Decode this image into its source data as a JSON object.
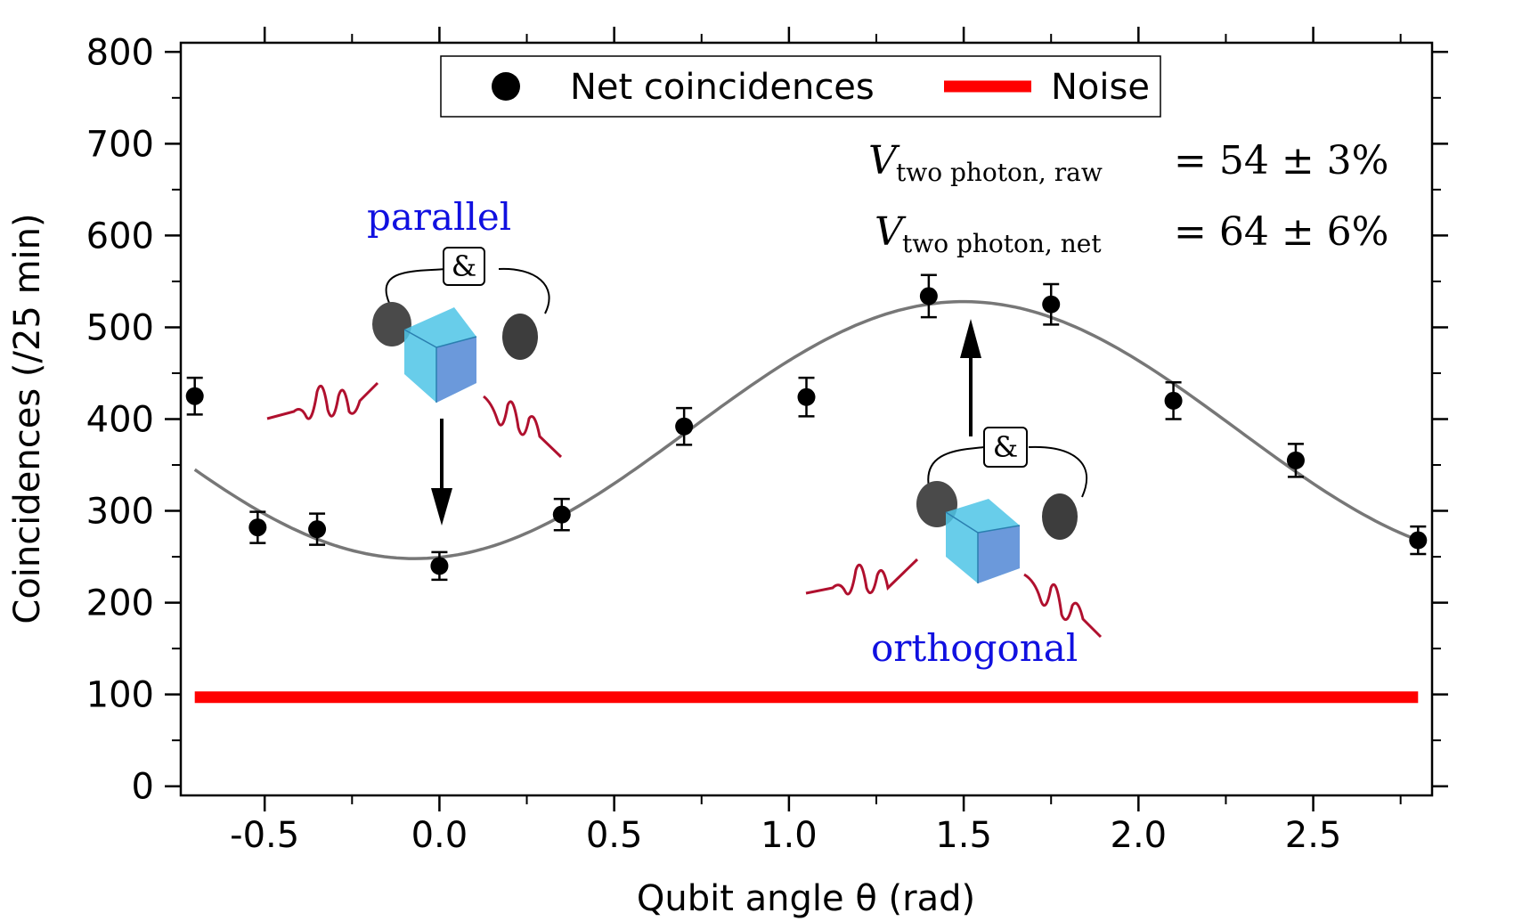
{
  "chart_data": {
    "type": "scatter",
    "xlabel": "Qubit angle θ (rad)",
    "ylabel": "Coincidences (/25 min)",
    "xlim": [
      -0.74,
      2.84
    ],
    "ylim": [
      -10,
      810
    ],
    "xticks": [
      -0.5,
      0.0,
      0.5,
      1.0,
      1.5,
      2.0,
      2.5
    ],
    "xtick_labels": [
      "-0.5",
      "0.0",
      "0.5",
      "1.0",
      "1.5",
      "2.0",
      "2.5"
    ],
    "yticks": [
      0,
      100,
      200,
      300,
      400,
      500,
      600,
      700,
      800
    ],
    "ytick_labels": [
      "0",
      "100",
      "200",
      "300",
      "400",
      "500",
      "600",
      "700",
      "800"
    ],
    "series": [
      {
        "name": "Net coincidences",
        "kind": "points-with-errorbars",
        "color": "#000000",
        "x": [
          -0.7,
          -0.52,
          -0.35,
          0.0,
          0.35,
          0.7,
          1.05,
          1.4,
          1.75,
          2.1,
          2.45,
          2.8
        ],
        "y": [
          425,
          282,
          280,
          240,
          296,
          392,
          424,
          534,
          525,
          420,
          355,
          268
        ],
        "yerr": [
          20,
          17,
          17,
          15,
          17,
          20,
          21,
          23,
          22,
          20,
          18,
          15
        ]
      },
      {
        "name": "Noise",
        "kind": "line",
        "color": "#ff0000",
        "x": [
          -0.7,
          2.8
        ],
        "y": [
          97,
          97
        ]
      },
      {
        "name": "fit",
        "kind": "curve",
        "color": "#777777",
        "model": "offset + amplitude*cos(2*(x - phase))",
        "offset": 388,
        "amplitude": 140,
        "phase": 1.5,
        "x_range": [
          -0.7,
          2.8
        ]
      }
    ],
    "legend": {
      "position": "top-center",
      "entries": [
        "Net coincidences",
        "Noise"
      ]
    },
    "annotations": {
      "raw": {
        "symbol": "V",
        "subscript": "two photon, raw",
        "value": "= 54 ± 3%"
      },
      "net": {
        "symbol": "V",
        "subscript": "two photon, net",
        "value": "= 64 ± 6%"
      },
      "parallel_label": "parallel",
      "orthogonal_label": "orthogonal",
      "ampersand": "&",
      "label_color": "#1010e0"
    }
  }
}
